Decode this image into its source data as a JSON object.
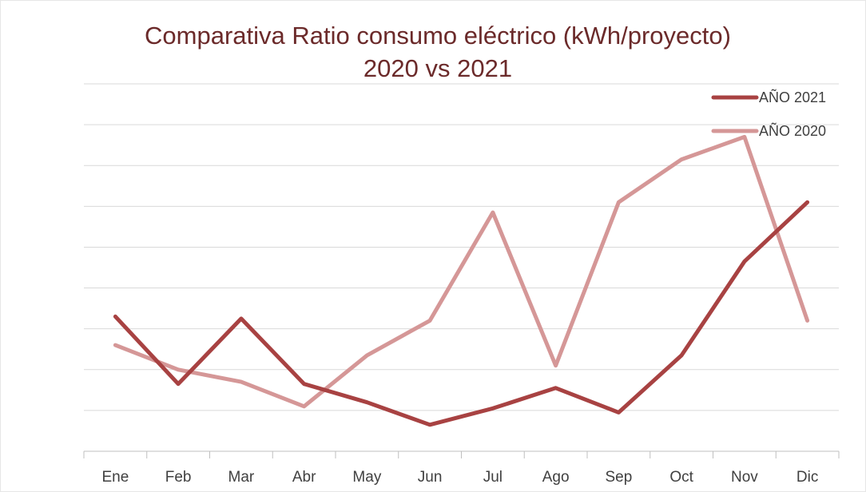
{
  "chart_data": {
    "type": "line",
    "title_lines": [
      "Comparativa Ratio consumo eléctrico (kWh/proyecto)",
      "2020 vs 2021"
    ],
    "categories": [
      "Ene",
      "Feb",
      "Mar",
      "Abr",
      "May",
      "Jun",
      "Jul",
      "Ago",
      "Sep",
      "Oct",
      "Nov",
      "Dic"
    ],
    "ylim": [
      0,
      9
    ],
    "grid": true,
    "y_ticks_labeled": false,
    "legend_position": "top-right",
    "series": [
      {
        "name": "AÑO 2021",
        "color": "#a84242",
        "values": [
          3.3,
          1.65,
          3.25,
          1.65,
          1.2,
          0.65,
          1.05,
          1.55,
          0.95,
          2.35,
          4.65,
          6.1
        ]
      },
      {
        "name": "AÑO 2020",
        "color": "#d59797",
        "values": [
          2.6,
          2.0,
          1.7,
          1.1,
          2.35,
          3.2,
          5.85,
          2.1,
          6.1,
          7.15,
          7.7,
          3.2
        ]
      }
    ]
  }
}
